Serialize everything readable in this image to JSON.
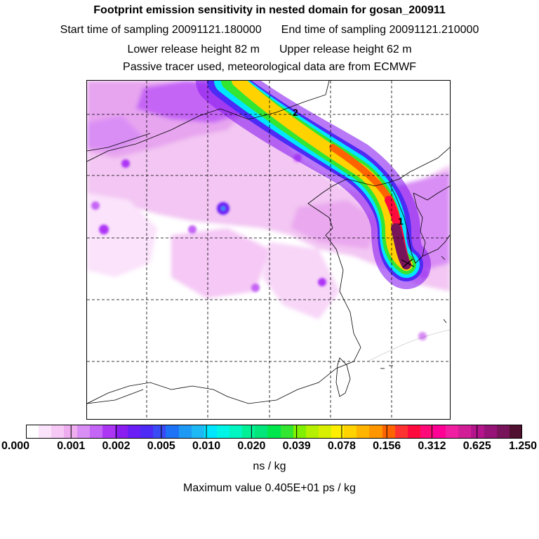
{
  "header": {
    "title": "Footprint emission sensitivity in nested domain for gosan_200911",
    "start_time": "Start time of sampling 20091121.180000",
    "end_time": "End time of sampling 20091121.210000",
    "lower_release": "Lower release height   82 m",
    "upper_release": "Upper release height   62 m",
    "note": "Passive tracer used, meteorological data are from ECMWF"
  },
  "map": {
    "labels": {
      "point_1": "1",
      "point_2": "2"
    },
    "release_marker": "x-icon"
  },
  "colorbar": {
    "colors": [
      "#ffffff",
      "#fbe3fb",
      "#f5c8f5",
      "#eeadee",
      "#d98ef5",
      "#c565f5",
      "#ad36f5",
      "#8a1ef0",
      "#6a1ef5",
      "#4d2af5",
      "#3a4af5",
      "#1e72f5",
      "#1e9af5",
      "#1eb8f5",
      "#00e6ff",
      "#00f5e6",
      "#00f5c0",
      "#00f096",
      "#00e67a",
      "#00e64d",
      "#32e632",
      "#80f000",
      "#b4f000",
      "#d8f000",
      "#ffee00",
      "#ffd200",
      "#ffb400",
      "#ff9600",
      "#ff6400",
      "#ff3232",
      "#ff0a3c",
      "#ff0a78",
      "#ff0096",
      "#f01ea0",
      "#d21e96",
      "#b4148c",
      "#961478",
      "#78145a",
      "#50102f"
    ],
    "tick_labels": [
      "0.000",
      "0.001",
      "0.002",
      "0.005",
      "0.010",
      "0.020",
      "0.039",
      "0.078",
      "0.156",
      "0.312",
      "0.625",
      "1.250"
    ],
    "unit": "ns / kg"
  },
  "max_value_text": "Maximum value  0.405E+01 ps / kg"
}
